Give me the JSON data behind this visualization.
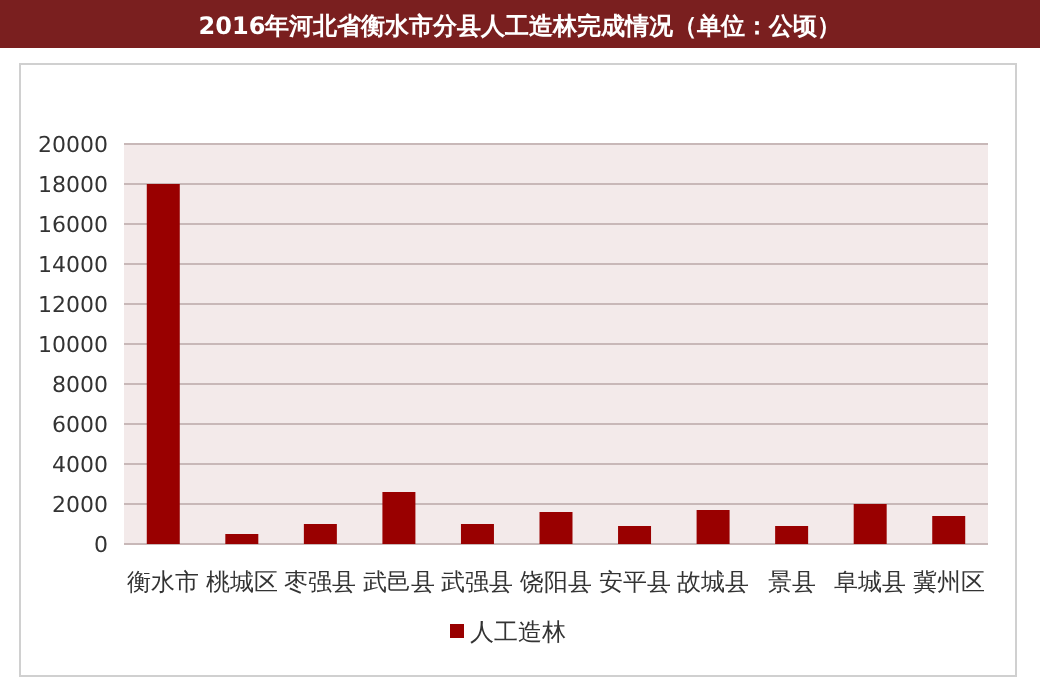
{
  "chart_data": {
    "type": "bar",
    "title": "2016年河北省衡水市分县人工造林完成情况（单位：公顷）",
    "categories": [
      "衡水市",
      "桃城区",
      "枣强县",
      "武邑县",
      "武强县",
      "饶阳县",
      "安平县",
      "故城县",
      "景县",
      "阜城县",
      "冀州区"
    ],
    "series": [
      {
        "name": "人工造林",
        "color": "#990000",
        "values": [
          18000,
          500,
          1000,
          2600,
          1000,
          1600,
          900,
          1700,
          900,
          2000,
          1400
        ]
      }
    ],
    "ylim": [
      0,
      20000
    ],
    "yticks": [
      0,
      2000,
      4000,
      6000,
      8000,
      10000,
      12000,
      14000,
      16000,
      18000,
      20000
    ],
    "grid": "y",
    "legend": "bottom"
  }
}
